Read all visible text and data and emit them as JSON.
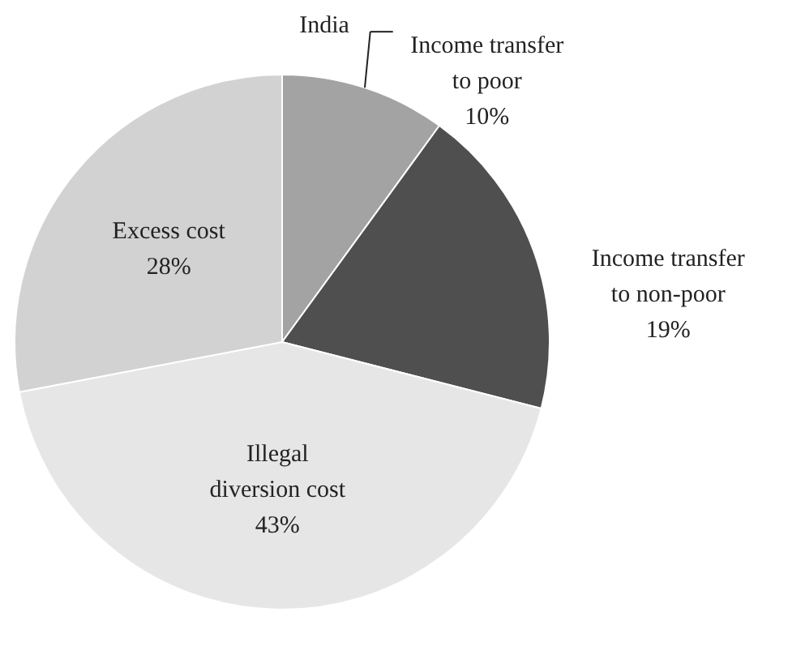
{
  "chart_data": {
    "type": "pie",
    "title": "India",
    "categories": [
      "Income transfer\nto poor",
      "Income transfer\nto non-poor",
      "Illegal\ndiversion cost",
      "Excess cost"
    ],
    "values": [
      10,
      19,
      43,
      28
    ],
    "value_labels": [
      "10%",
      "19%",
      "43%",
      "28%"
    ],
    "colors": [
      "#a3a3a3",
      "#4f4f4f",
      "#e6e6e6",
      "#d2d2d2"
    ]
  }
}
